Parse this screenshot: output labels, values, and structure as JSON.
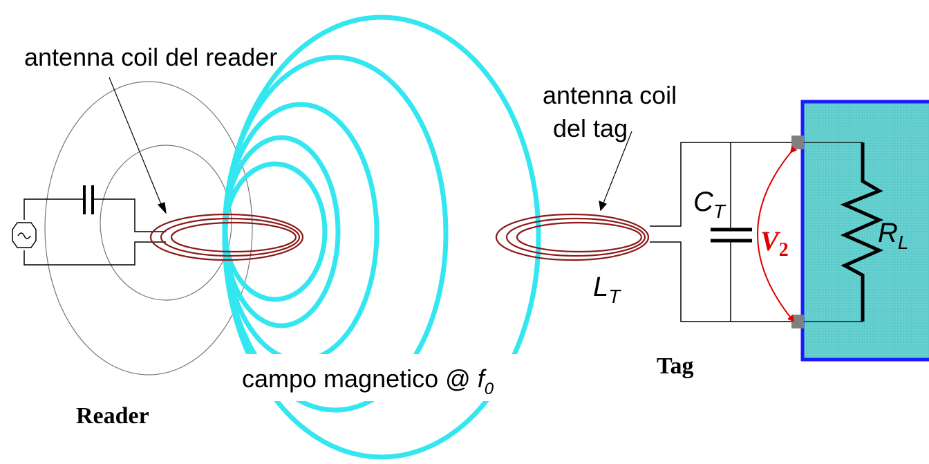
{
  "labels": {
    "reader_coil": "antenna coil del reader",
    "tag_coil_line1": "antenna coil",
    "tag_coil_line2": "del tag",
    "field_main": "campo magnetico @ ",
    "field_var": "f",
    "field_sub": "0",
    "reader": "Reader",
    "tag": "Tag",
    "ct_main": "C",
    "ct_sub": "T",
    "lt_main": "L",
    "lt_sub": "T",
    "v2_main": "V",
    "v2_sub": "2",
    "rl_main": "R",
    "rl_sub": "L"
  },
  "colors": {
    "field_lines": "#33e6f0",
    "coil": "#8b1a1a",
    "wire": "#000000",
    "load_fill": "#5fcccc",
    "load_border": "#1a1aff",
    "voltage_arrow": "#e00000",
    "terminal": "#808080",
    "reader_field_outline": "#777777"
  }
}
